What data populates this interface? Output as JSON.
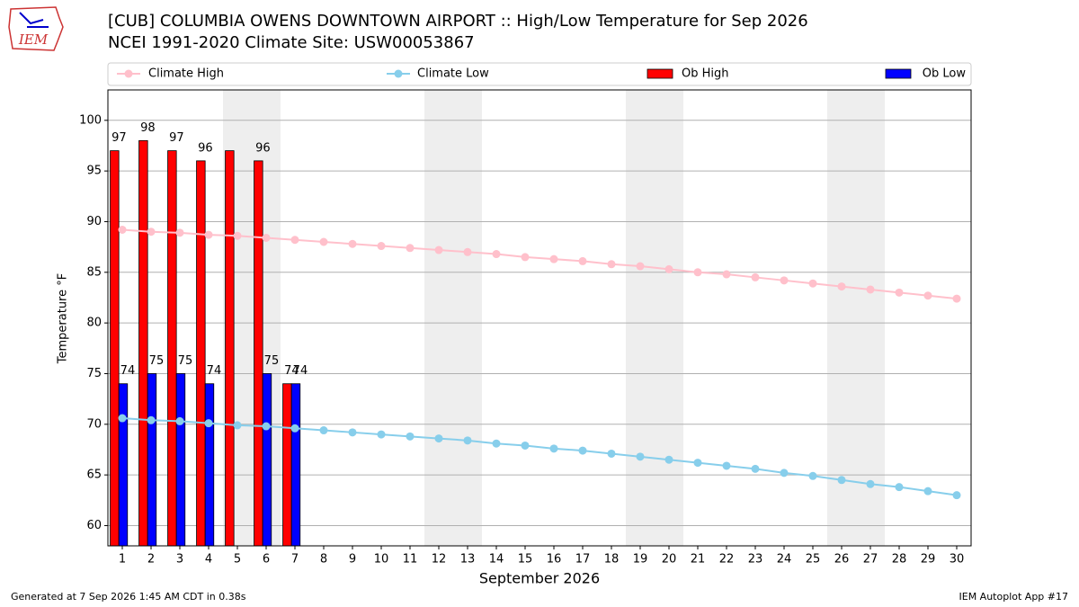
{
  "chart_data": {
    "type": "bar",
    "title": "[CUB] COLUMBIA OWENS DOWNTOWN AIRPORT :: High/Low Temperature for Sep 2026",
    "subtitle": "NCEI 1991-2020 Climate Site: USW00053867",
    "logo": "IEM",
    "xlabel": "September 2026",
    "ylabel": "Temperature °F",
    "footer_left": "Generated at 7 Sep 2026 1:45 AM CDT in 0.38s",
    "footer_right": "IEM Autoplot App #17",
    "x": [
      1,
      2,
      3,
      4,
      5,
      6,
      7,
      8,
      9,
      10,
      11,
      12,
      13,
      14,
      15,
      16,
      17,
      18,
      19,
      20,
      21,
      22,
      23,
      24,
      25,
      26,
      27,
      28,
      29,
      30
    ],
    "xlim": [
      0.5,
      30.5
    ],
    "xticks": [
      1,
      2,
      3,
      4,
      5,
      6,
      7,
      8,
      9,
      10,
      11,
      12,
      13,
      14,
      15,
      16,
      17,
      18,
      19,
      20,
      21,
      22,
      23,
      24,
      25,
      26,
      27,
      28,
      29,
      30
    ],
    "ylim": [
      58,
      103
    ],
    "yticks": [
      60,
      65,
      70,
      75,
      80,
      85,
      90,
      95,
      100
    ],
    "grid": true,
    "shaded_days": [
      5,
      6,
      12,
      13,
      19,
      20,
      26,
      27
    ],
    "shade_color": "#eeeeee",
    "legend": "top",
    "series": [
      {
        "name": "Climate High",
        "kind": "line",
        "color": "#ffc0cb",
        "values": [
          89.2,
          89.0,
          88.9,
          88.7,
          88.6,
          88.4,
          88.2,
          88.0,
          87.8,
          87.6,
          87.4,
          87.2,
          87.0,
          86.8,
          86.5,
          86.3,
          86.1,
          85.8,
          85.6,
          85.3,
          85.0,
          84.8,
          84.5,
          84.2,
          83.9,
          83.6,
          83.3,
          83.0,
          82.7,
          82.4
        ]
      },
      {
        "name": "Climate Low",
        "kind": "line",
        "color": "#87ceeb",
        "values": [
          70.6,
          70.4,
          70.3,
          70.1,
          69.9,
          69.8,
          69.6,
          69.4,
          69.2,
          69.0,
          68.8,
          68.6,
          68.4,
          68.1,
          67.9,
          67.6,
          67.4,
          67.1,
          66.8,
          66.5,
          66.2,
          65.9,
          65.6,
          65.2,
          64.9,
          64.5,
          64.1,
          63.8,
          63.4,
          63.0
        ]
      },
      {
        "name": "Ob High",
        "kind": "bar",
        "color": "#ff0000",
        "values": [
          97,
          98,
          97,
          96,
          97,
          96,
          74,
          null,
          null,
          null,
          null,
          null,
          null,
          null,
          null,
          null,
          null,
          null,
          null,
          null,
          null,
          null,
          null,
          null,
          null,
          null,
          null,
          null,
          null,
          null
        ],
        "value_labels": [
          "97",
          "98",
          "97",
          "96",
          null,
          "96",
          "74",
          null,
          null,
          null,
          null,
          null,
          null,
          null,
          null,
          null,
          null,
          null,
          null,
          null,
          null,
          null,
          null,
          null,
          null,
          null,
          null,
          null,
          null,
          null
        ]
      },
      {
        "name": "Ob Low",
        "kind": "bar",
        "color": "#0000ff",
        "values": [
          74,
          75,
          75,
          74,
          null,
          75,
          74,
          null,
          null,
          null,
          null,
          null,
          null,
          null,
          null,
          null,
          null,
          null,
          null,
          null,
          null,
          null,
          null,
          null,
          null,
          null,
          null,
          null,
          null,
          null
        ],
        "value_labels": [
          "74",
          "75",
          "75",
          "74",
          null,
          "75",
          "74",
          null,
          null,
          null,
          null,
          null,
          null,
          null,
          null,
          null,
          null,
          null,
          null,
          null,
          null,
          null,
          null,
          null,
          null,
          null,
          null,
          null,
          null,
          null
        ]
      }
    ]
  }
}
